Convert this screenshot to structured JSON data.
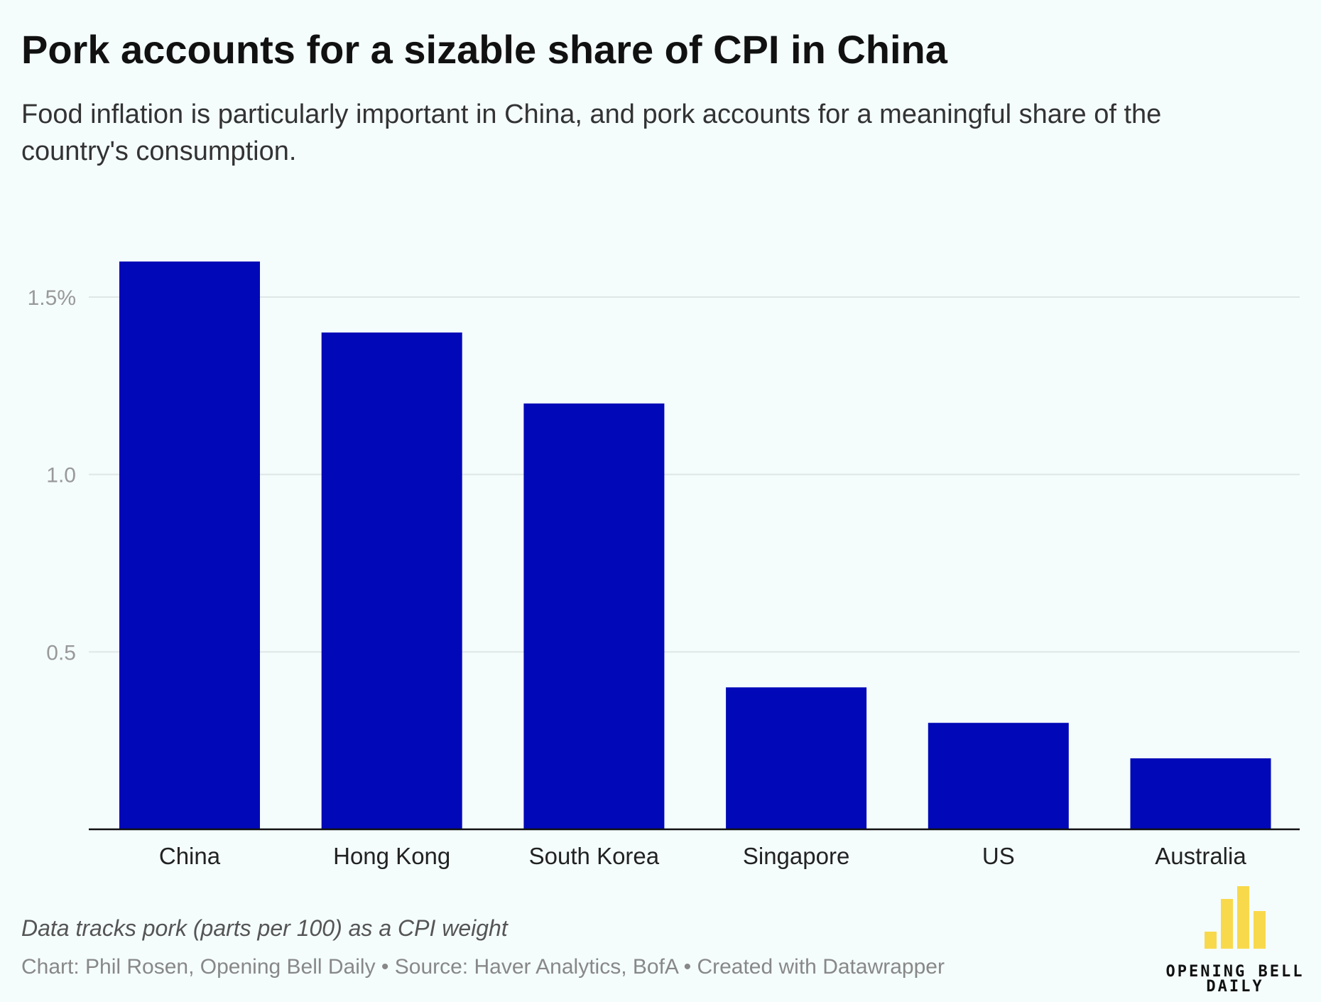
{
  "chart_data": {
    "type": "bar",
    "title": "Pork accounts for a sizable share of CPI in China",
    "subtitle": [
      "Food inflation is particularly important in China, and pork accounts for a meaningful share of the",
      "country's consumption."
    ],
    "categories": [
      "China",
      "Hong Kong",
      "South Korea",
      "Singapore",
      "US",
      "Australia"
    ],
    "values": [
      1.6,
      1.4,
      1.2,
      0.4,
      0.3,
      0.2
    ],
    "color": "#0008b8",
    "ylim": [
      0,
      1.6
    ],
    "yticks": [
      0.5,
      {
        "value": 1,
        "label": "1.0"
      },
      {
        "value": 1.5,
        "label": "1.5%"
      }
    ],
    "grid": true,
    "note": "Data tracks pork (parts per 100) as a CPI weight",
    "credit": "Chart: Phil Rosen, Opening Bell Daily • Source: Haver Analytics, BofA  • Created with Datawrapper",
    "logo": [
      "OPENING BELL",
      "DAILY"
    ]
  }
}
